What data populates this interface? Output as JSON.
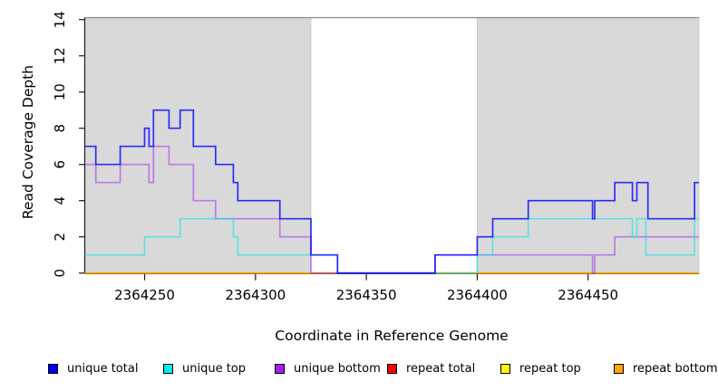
{
  "chart_data": {
    "type": "line",
    "subtype": "step-coverage",
    "title": "",
    "xlabel": "Coordinate in Reference Genome",
    "ylabel": "Read Coverage Depth",
    "xlim": [
      2364223,
      2364500
    ],
    "ylim": [
      0,
      14
    ],
    "x_ticks": [
      2364250,
      2364300,
      2364350,
      2364400,
      2364450
    ],
    "y_ticks": [
      0,
      2,
      4,
      6,
      8,
      10,
      12,
      14
    ],
    "grid": false,
    "legend_position": "bottom",
    "shaded_regions": [
      {
        "from": 2364223,
        "to": 2364325,
        "color": "#d9d9d9"
      },
      {
        "from": 2364400,
        "to": 2364500,
        "color": "#d9d9d9"
      }
    ],
    "series": [
      {
        "name": "repeat total",
        "color": "#FF0000",
        "alpha": 0.85,
        "points": [
          [
            2364223,
            0
          ]
        ]
      },
      {
        "name": "repeat top",
        "color": "#FFFF00",
        "alpha": 0.9,
        "points": [
          [
            2364223,
            0
          ]
        ]
      },
      {
        "name": "repeat bottom",
        "color": "#FFA500",
        "alpha": 1,
        "points": [
          [
            2364223,
            0
          ]
        ]
      },
      {
        "name": "unique bottom",
        "color": "#A020F0",
        "alpha": 0.5,
        "points": [
          [
            2364223,
            6
          ],
          [
            2364228,
            5
          ],
          [
            2364239,
            6
          ],
          [
            2364252,
            5
          ],
          [
            2364254,
            7
          ],
          [
            2364261,
            6
          ],
          [
            2364272,
            4
          ],
          [
            2364282,
            3
          ],
          [
            2364311,
            2
          ],
          [
            2364325,
            0
          ],
          [
            2364381,
            1
          ],
          [
            2364452,
            0
          ],
          [
            2364453,
            1
          ],
          [
            2364462,
            2
          ]
        ]
      },
      {
        "name": "unique top",
        "color": "#00E5EE",
        "alpha": 0.55,
        "points": [
          [
            2364223,
            1
          ],
          [
            2364250,
            2
          ],
          [
            2364266,
            3
          ],
          [
            2364290,
            2
          ],
          [
            2364292,
            1
          ],
          [
            2364337,
            0
          ],
          [
            2364400,
            1
          ],
          [
            2364407,
            2
          ],
          [
            2364423,
            3
          ],
          [
            2364470,
            2
          ],
          [
            2364472,
            3
          ],
          [
            2364476,
            1
          ],
          [
            2364498,
            3
          ]
        ]
      },
      {
        "name": "unique total",
        "color": "#0000FF",
        "alpha": 0.8,
        "points": [
          [
            2364223,
            7
          ],
          [
            2364228,
            6
          ],
          [
            2364239,
            7
          ],
          [
            2364250,
            8
          ],
          [
            2364252,
            7
          ],
          [
            2364254,
            9
          ],
          [
            2364261,
            8
          ],
          [
            2364266,
            9
          ],
          [
            2364272,
            7
          ],
          [
            2364282,
            6
          ],
          [
            2364290,
            5
          ],
          [
            2364292,
            4
          ],
          [
            2364311,
            3
          ],
          [
            2364325,
            1
          ],
          [
            2364337,
            0
          ],
          [
            2364381,
            1
          ],
          [
            2364400,
            2
          ],
          [
            2364407,
            3
          ],
          [
            2364423,
            4
          ],
          [
            2364452,
            3
          ],
          [
            2364453,
            4
          ],
          [
            2364462,
            5
          ],
          [
            2364470,
            4
          ],
          [
            2364472,
            5
          ],
          [
            2364477,
            3
          ],
          [
            2364498,
            5
          ]
        ]
      }
    ],
    "legend": [
      {
        "label": "unique total",
        "color": "#0000EE"
      },
      {
        "label": "unique top",
        "color": "#00EEEE"
      },
      {
        "label": "unique bottom",
        "color": "#A020F0"
      },
      {
        "label": "repeat total",
        "color": "#FF0000"
      },
      {
        "label": "repeat top",
        "color": "#FFFF00"
      },
      {
        "label": "repeat bottom",
        "color": "#FFA500"
      }
    ]
  }
}
